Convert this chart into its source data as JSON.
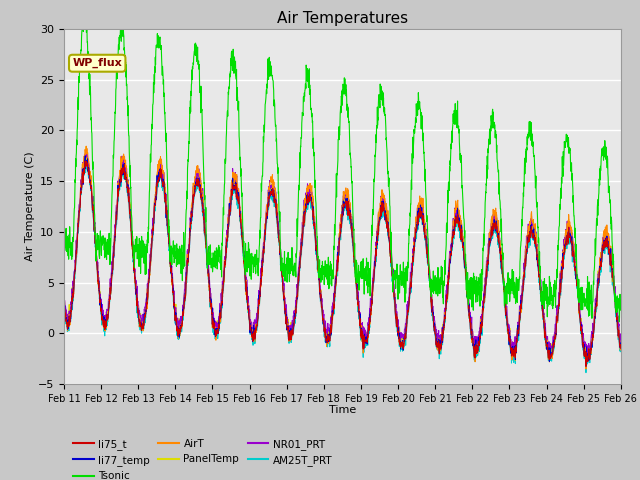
{
  "title": "Air Temperatures",
  "xlabel": "Time",
  "ylabel": "Air Temperature (C)",
  "ylim": [
    -5,
    30
  ],
  "xlim": [
    0,
    15
  ],
  "x_tick_labels": [
    "Feb 11",
    "Feb 12",
    "Feb 13",
    "Feb 14",
    "Feb 15",
    "Feb 16",
    "Feb 17",
    "Feb 18",
    "Feb 19",
    "Feb 20",
    "Feb 21",
    "Feb 22",
    "Feb 23",
    "Feb 24",
    "Feb 25",
    "Feb 26"
  ],
  "fig_bg_color": "#c8c8c8",
  "ax_bg_color": "#e8e8e8",
  "annotation_text": "WP_flux",
  "annotation_fc": "#ffffcc",
  "annotation_ec": "#aaaa00",
  "annotation_tc": "#800000",
  "series_colors": {
    "li75_t": "#cc0000",
    "li77_temp": "#0000cc",
    "Tsonic": "#00dd00",
    "AirT": "#ff8800",
    "PanelTemp": "#dddd00",
    "NR01_PRT": "#9900cc",
    "AM25T_PRT": "#00cccc"
  },
  "legend_row1": [
    "li75_t",
    "li77_temp",
    "Tsonic",
    "AirT",
    "PanelTemp",
    "NR01_PRT"
  ],
  "legend_row2": [
    "AM25T_PRT"
  ]
}
